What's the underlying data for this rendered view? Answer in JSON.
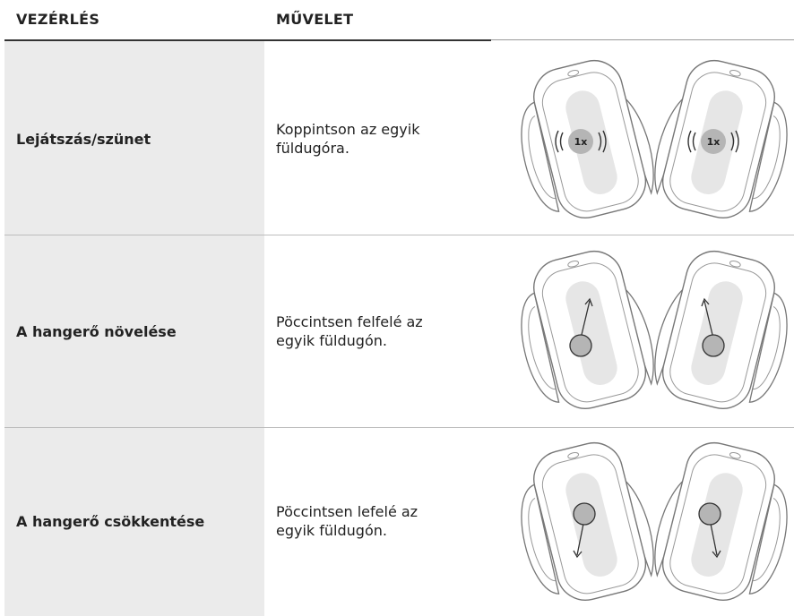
{
  "table": {
    "header": [
      "VEZÉRLÉS",
      "MŰVELET"
    ],
    "rows": [
      {
        "control": "Lejátszás/szünet",
        "action": [
          "Koppintson az egyik",
          "füldugóra."
        ],
        "tap_label": "1x"
      },
      {
        "control": "A hangerő növelése",
        "action": [
          "Pöccintsen felfelé az",
          "egyik füldugón."
        ]
      },
      {
        "control": "A hangerő csökkentése",
        "action": [
          "Pöccintsen lefelé az",
          "egyik füldugón."
        ]
      }
    ]
  }
}
